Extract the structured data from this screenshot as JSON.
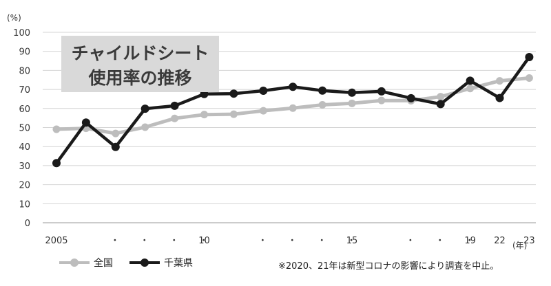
{
  "chart_data": {
    "type": "line",
    "title_lines": [
      "チャイルドシート",
      "使用率の推移"
    ],
    "y_unit": "(%)",
    "x_unit": "(年)",
    "ylim": [
      0,
      100
    ],
    "y_ticks": [
      0,
      10,
      20,
      30,
      40,
      50,
      60,
      70,
      80,
      90,
      100
    ],
    "grid": true,
    "x": [
      2005,
      2006,
      2007,
      2008,
      2009,
      2010,
      2011,
      2012,
      2013,
      2014,
      2015,
      2016,
      2017,
      2018,
      2019,
      2022,
      2023
    ],
    "x_tick_labels": [
      "2005",
      "・",
      "・",
      "・",
      "・",
      "10",
      "・",
      "・",
      "・",
      "・",
      "15",
      "・",
      "・",
      "・",
      "19",
      "22",
      "23"
    ],
    "series": [
      {
        "name": "全国",
        "color": "#bdbdbd",
        "values": [
          49.1,
          49.6,
          46.9,
          50.2,
          54.8,
          56.8,
          57.0,
          58.8,
          60.2,
          61.9,
          62.7,
          64.2,
          64.1,
          66.2,
          70.5,
          74.5,
          76.0
        ]
      },
      {
        "name": "千葉県",
        "color": "#1a1a1a",
        "values": [
          31.3,
          52.6,
          39.8,
          59.9,
          61.4,
          67.6,
          67.8,
          69.3,
          71.4,
          69.4,
          68.3,
          69.0,
          65.4,
          62.3,
          74.6,
          65.5,
          87.0
        ]
      }
    ],
    "legend_position": "bottom-left",
    "note": "※2020、21年は新型コロナの影響により調査を中止。"
  }
}
